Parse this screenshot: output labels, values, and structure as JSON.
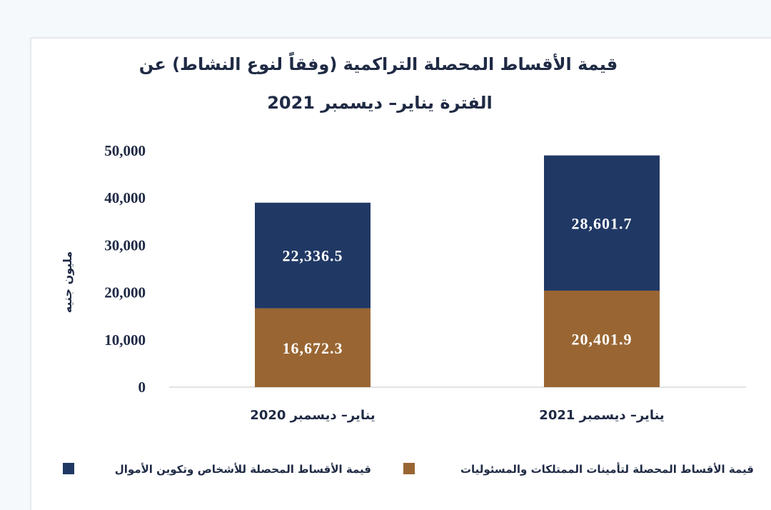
{
  "chart_data": {
    "type": "bar",
    "stacked": true,
    "title_line1": "قيمة الأقساط المحصلة التراكمية (وفقاً لنوع النشاط) عن",
    "title_line2": "الفترة يناير– ديسمبر 2021",
    "ylabel": "مليون جنيه",
    "xlabel": "",
    "ylim": [
      0,
      50000
    ],
    "yticks": [
      "0",
      "10,000",
      "20,000",
      "30,000",
      "40,000",
      "50,000"
    ],
    "categories": [
      "يناير– ديسمبر 2020",
      "يناير– ديسمبر 2021"
    ],
    "series": [
      {
        "name": "قيمة الأقساط المحصلة  لتأمينات الممتلكات والمسئوليات",
        "color": "#996633",
        "values": [
          16672.3,
          20401.9
        ],
        "labels": [
          "16,672.3",
          "20,401.9"
        ]
      },
      {
        "name": "قيمة الأقساط المحصلة للأشخاص وتكوين الأموال",
        "color": "#203864",
        "values": [
          22336.5,
          28601.7
        ],
        "labels": [
          "22,336.5",
          "28,601.7"
        ]
      }
    ],
    "grid": false,
    "legend_position": "bottom"
  }
}
